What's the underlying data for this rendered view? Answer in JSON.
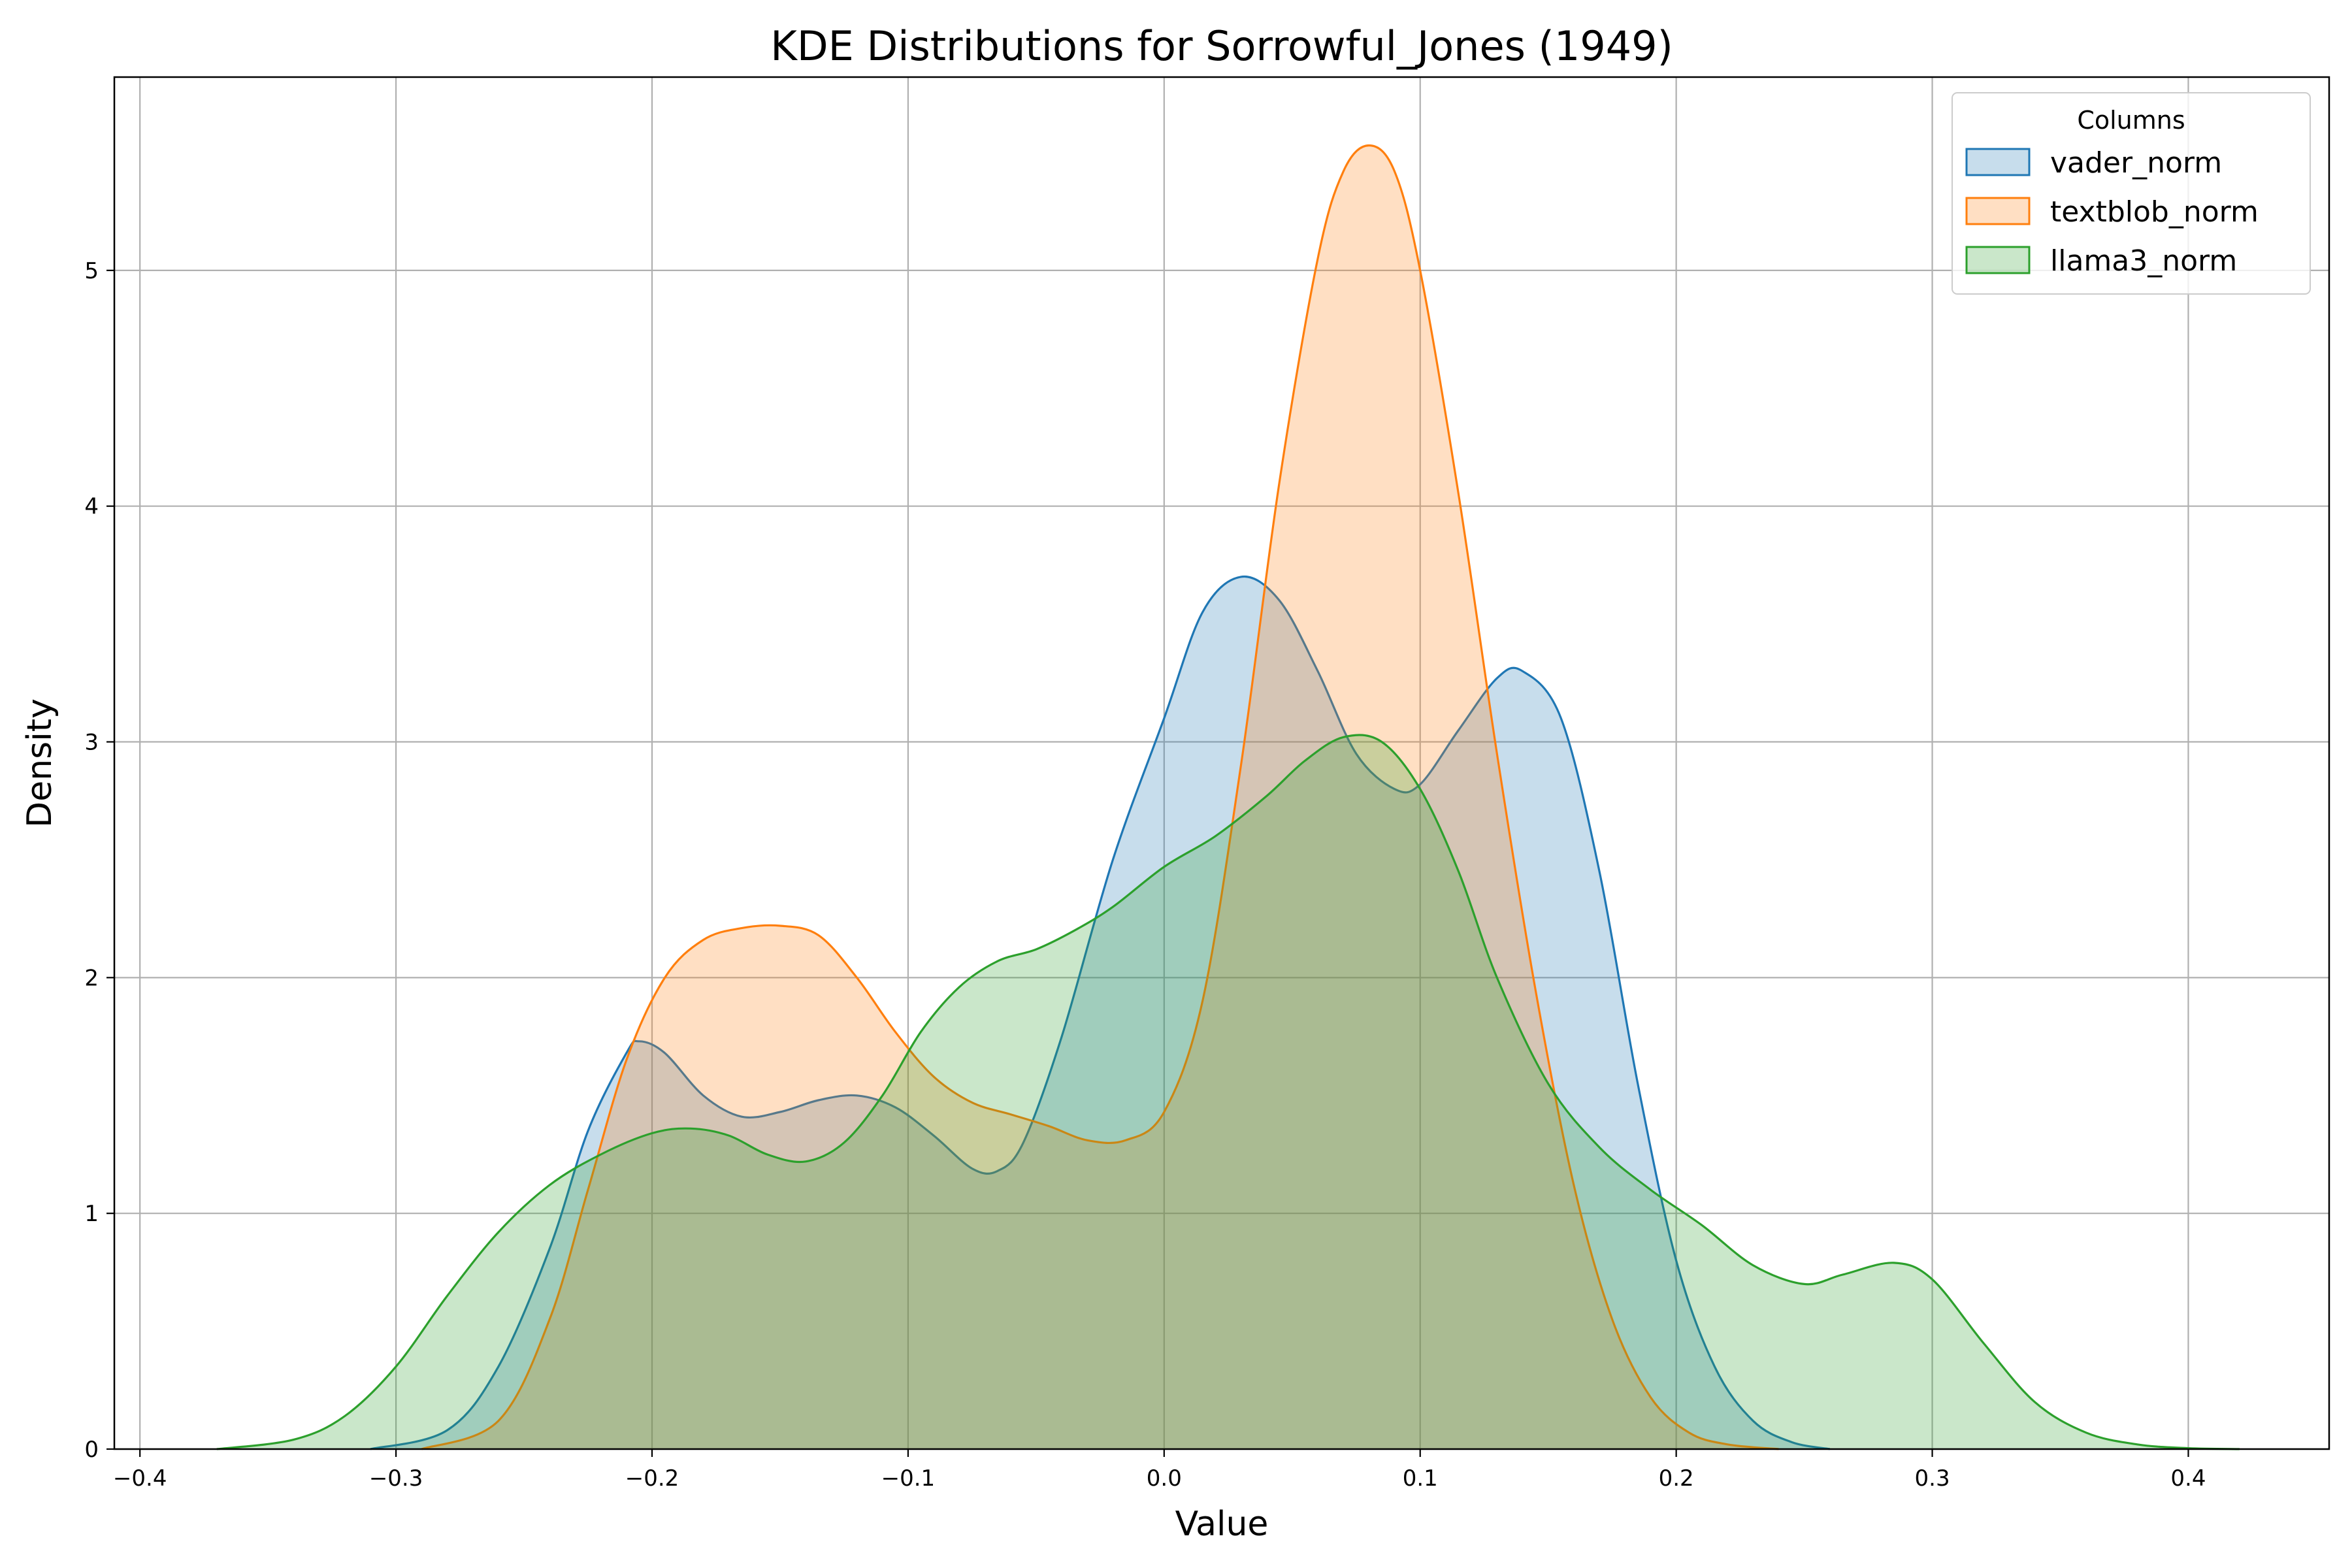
{
  "chart_data": {
    "type": "area",
    "title": "KDE Distributions for Sorrowful_Jones (1949)",
    "xlabel": "Value",
    "ylabel": "Density",
    "xlim": [
      -0.41,
      0.455
    ],
    "ylim": [
      0,
      5.82
    ],
    "xticks": [
      -0.4,
      -0.3,
      -0.2,
      -0.1,
      0.0,
      0.1,
      0.2,
      0.3,
      0.4
    ],
    "xtick_labels": [
      "−0.4",
      "−0.3",
      "−0.2",
      "−0.1",
      "0.0",
      "0.1",
      "0.2",
      "0.3",
      "0.4"
    ],
    "yticks": [
      0,
      1,
      2,
      3,
      4,
      5
    ],
    "ytick_labels": [
      "0",
      "1",
      "2",
      "3",
      "4",
      "5"
    ],
    "grid": true,
    "legend": {
      "title": "Columns",
      "position": "top-right"
    },
    "series": [
      {
        "name": "vader_norm",
        "color": "#1f77b4",
        "x": [
          -0.31,
          -0.28,
          -0.26,
          -0.24,
          -0.225,
          -0.21,
          -0.205,
          -0.195,
          -0.18,
          -0.165,
          -0.15,
          -0.135,
          -0.12,
          -0.105,
          -0.09,
          -0.075,
          -0.065,
          -0.055,
          -0.04,
          -0.02,
          0.0,
          0.015,
          0.03,
          0.045,
          0.06,
          0.075,
          0.09,
          0.1,
          0.115,
          0.13,
          0.14,
          0.155,
          0.17,
          0.185,
          0.2,
          0.215,
          0.23,
          0.245,
          0.26
        ],
        "y": [
          0.0,
          0.08,
          0.35,
          0.85,
          1.35,
          1.68,
          1.73,
          1.68,
          1.5,
          1.41,
          1.43,
          1.48,
          1.5,
          1.45,
          1.33,
          1.19,
          1.18,
          1.3,
          1.75,
          2.5,
          3.1,
          3.55,
          3.7,
          3.6,
          3.3,
          2.95,
          2.8,
          2.82,
          3.05,
          3.27,
          3.3,
          3.1,
          2.45,
          1.55,
          0.8,
          0.35,
          0.12,
          0.03,
          0.0
        ]
      },
      {
        "name": "textblob_norm",
        "color": "#ff7f0e",
        "x": [
          -0.29,
          -0.26,
          -0.24,
          -0.225,
          -0.21,
          -0.195,
          -0.18,
          -0.165,
          -0.15,
          -0.135,
          -0.12,
          -0.105,
          -0.09,
          -0.075,
          -0.06,
          -0.045,
          -0.03,
          -0.015,
          0.0,
          0.015,
          0.03,
          0.045,
          0.06,
          0.07,
          0.08,
          0.09,
          0.1,
          0.115,
          0.13,
          0.145,
          0.16,
          0.175,
          0.19,
          0.205,
          0.22,
          0.24
        ],
        "y": [
          0.0,
          0.12,
          0.55,
          1.1,
          1.65,
          2.0,
          2.16,
          2.21,
          2.22,
          2.18,
          2.0,
          1.77,
          1.58,
          1.47,
          1.42,
          1.37,
          1.31,
          1.31,
          1.43,
          1.9,
          2.9,
          4.1,
          5.05,
          5.42,
          5.53,
          5.42,
          5.0,
          4.05,
          2.95,
          1.95,
          1.12,
          0.55,
          0.22,
          0.07,
          0.02,
          0.0
        ]
      },
      {
        "name": "llama3_norm",
        "color": "#2ca02c",
        "x": [
          -0.37,
          -0.34,
          -0.32,
          -0.3,
          -0.28,
          -0.26,
          -0.24,
          -0.22,
          -0.2,
          -0.185,
          -0.17,
          -0.155,
          -0.14,
          -0.125,
          -0.11,
          -0.095,
          -0.08,
          -0.065,
          -0.05,
          -0.035,
          -0.02,
          0.0,
          0.02,
          0.04,
          0.055,
          0.07,
          0.085,
          0.1,
          0.115,
          0.13,
          0.15,
          0.17,
          0.19,
          0.21,
          0.23,
          0.25,
          0.265,
          0.285,
          0.3,
          0.32,
          0.34,
          0.36,
          0.38,
          0.4,
          0.42
        ],
        "y": [
          0.0,
          0.04,
          0.14,
          0.35,
          0.65,
          0.92,
          1.12,
          1.25,
          1.34,
          1.36,
          1.33,
          1.25,
          1.22,
          1.3,
          1.5,
          1.77,
          1.96,
          2.07,
          2.12,
          2.2,
          2.3,
          2.47,
          2.6,
          2.77,
          2.92,
          3.02,
          3.0,
          2.8,
          2.45,
          2.0,
          1.55,
          1.28,
          1.1,
          0.95,
          0.78,
          0.7,
          0.74,
          0.79,
          0.72,
          0.45,
          0.2,
          0.07,
          0.02,
          0.004,
          0.0
        ]
      }
    ]
  }
}
